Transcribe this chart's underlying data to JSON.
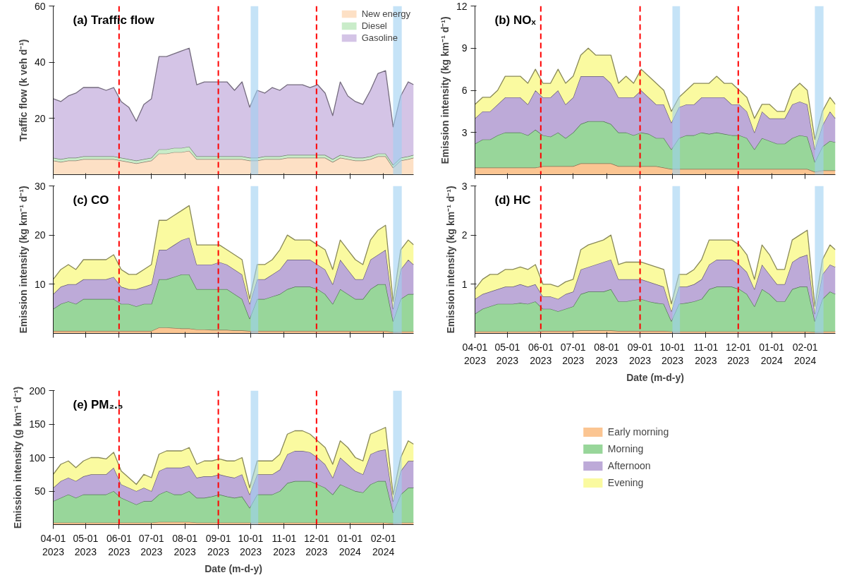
{
  "chart_data": [
    {
      "type": "area",
      "stacked": true,
      "title": "(a) Traffic flow",
      "ylabel": "Traffic flow (k veh d⁻¹)",
      "xlim": [
        "2023-04-01",
        "2024-02-29"
      ],
      "ylim": [
        0,
        60
      ],
      "yticks": [
        20,
        40,
        60
      ],
      "xticks": [
        {
          "value": "2023-04-01",
          "label": null
        },
        {
          "value": "2023-05-01",
          "label": null
        },
        {
          "value": "2023-06-01",
          "label": null
        },
        {
          "value": "2023-07-01",
          "label": null
        },
        {
          "value": "2023-08-01",
          "label": null
        },
        {
          "value": "2023-09-01",
          "label": null
        },
        {
          "value": "2023-10-01",
          "label": null
        },
        {
          "value": "2023-11-01",
          "label": null
        },
        {
          "value": "2023-12-01",
          "label": null
        },
        {
          "value": "2024-01-01",
          "label": null
        },
        {
          "value": "2024-02-01",
          "label": null
        }
      ],
      "tick_labels": "y",
      "legend": "top right",
      "grid": false,
      "x": [
        "2023-04-01",
        "2023-04-08",
        "2023-04-15",
        "2023-04-22",
        "2023-04-29",
        "2023-05-06",
        "2023-05-13",
        "2023-05-20",
        "2023-05-27",
        "2023-06-03",
        "2023-06-10",
        "2023-06-17",
        "2023-06-24",
        "2023-07-01",
        "2023-07-08",
        "2023-07-15",
        "2023-07-22",
        "2023-07-29",
        "2023-08-05",
        "2023-08-12",
        "2023-08-19",
        "2023-08-26",
        "2023-09-02",
        "2023-09-09",
        "2023-09-16",
        "2023-09-23",
        "2023-09-30",
        "2023-10-07",
        "2023-10-14",
        "2023-10-21",
        "2023-10-28",
        "2023-11-04",
        "2023-11-11",
        "2023-11-18",
        "2023-11-25",
        "2023-12-02",
        "2023-12-09",
        "2023-12-16",
        "2023-12-23",
        "2023-12-30",
        "2024-01-06",
        "2024-01-13",
        "2024-01-20",
        "2024-01-27",
        "2024-02-03",
        "2024-02-10",
        "2024-02-17",
        "2024-02-24",
        "2024-02-29"
      ],
      "series": [
        {
          "name": "New energy",
          "color": "#fde0c5",
          "values": [
            5,
            4.5,
            5,
            5,
            5.5,
            5.5,
            5.5,
            5.5,
            5.5,
            5,
            4.5,
            4,
            4.5,
            5,
            7.5,
            7.5,
            8,
            8,
            8.5,
            5.5,
            5.5,
            5.5,
            5.5,
            5.5,
            5.5,
            5.5,
            5,
            5,
            5.5,
            5.5,
            5.5,
            6,
            6,
            6,
            6,
            6,
            6,
            4.5,
            6,
            5.5,
            5,
            5,
            5.5,
            6.5,
            6.5,
            2.5,
            5,
            5.5,
            6
          ]
        },
        {
          "name": "Diesel",
          "color": "#c9ecc9",
          "values": [
            1,
            1,
            1,
            1,
            1,
            1,
            1,
            1,
            1,
            1,
            1,
            1,
            1,
            1,
            1.5,
            1.5,
            1.5,
            1.5,
            1.5,
            1,
            1,
            1,
            1,
            1,
            1,
            1,
            1,
            1,
            1,
            1,
            1,
            1,
            1,
            1,
            1,
            1,
            1,
            1,
            1,
            1,
            1,
            1,
            1,
            1,
            1,
            1,
            1,
            1,
            1
          ]
        },
        {
          "name": "Gasoline",
          "color": "#d4c4e6",
          "values": [
            21,
            20.5,
            22,
            23,
            24.5,
            24.5,
            24.5,
            23.5,
            24.5,
            20,
            18.5,
            14,
            19.5,
            21,
            33,
            33,
            33.5,
            34.5,
            35,
            25.5,
            26.5,
            26.5,
            26.5,
            26.5,
            23.5,
            26.5,
            18,
            24,
            22.5,
            24.5,
            23.5,
            25,
            25,
            25,
            24,
            25,
            22,
            15.5,
            26,
            21.5,
            20,
            19,
            23.5,
            28.5,
            29.5,
            13.5,
            22,
            26.5,
            25
          ]
        }
      ],
      "ref_lines": [
        {
          "axis": "x",
          "value": "2023-06-01",
          "color": "#ff0000",
          "line_style": "dashed"
        },
        {
          "axis": "x",
          "value": "2023-09-01",
          "color": "#ff0000",
          "line_style": "dashed"
        },
        {
          "axis": "x",
          "value": "2023-12-01",
          "color": "#ff0000",
          "line_style": "dashed"
        }
      ],
      "bands": [
        {
          "axis": "x",
          "from": "2023-10-01",
          "to": "2023-10-08",
          "color": "#9fd0f2"
        },
        {
          "axis": "x",
          "from": "2024-02-10",
          "to": "2024-02-18",
          "color": "#9fd0f2"
        }
      ]
    },
    {
      "type": "area",
      "stacked": true,
      "title": "(b) NOₓ",
      "ylabel": "Emission intensity (kg km⁻¹ d⁻¹)",
      "xlim": [
        "2023-04-01",
        "2024-02-29"
      ],
      "ylim": [
        0,
        12
      ],
      "yticks": [
        3,
        6,
        9,
        12
      ],
      "xticks": [
        {
          "value": "2023-04-01",
          "label": null
        },
        {
          "value": "2023-05-01",
          "label": null
        },
        {
          "value": "2023-06-01",
          "label": null
        },
        {
          "value": "2023-07-01",
          "label": null
        },
        {
          "value": "2023-08-01",
          "label": null
        },
        {
          "value": "2023-09-01",
          "label": null
        },
        {
          "value": "2023-10-01",
          "label": null
        },
        {
          "value": "2023-11-01",
          "label": null
        },
        {
          "value": "2023-12-01",
          "label": null
        },
        {
          "value": "2024-01-01",
          "label": null
        },
        {
          "value": "2024-02-01",
          "label": null
        }
      ],
      "tick_labels": "y",
      "grid": false,
      "x": [
        "2023-04-01",
        "2023-04-08",
        "2023-04-15",
        "2023-04-22",
        "2023-04-29",
        "2023-05-06",
        "2023-05-13",
        "2023-05-20",
        "2023-05-27",
        "2023-06-03",
        "2023-06-10",
        "2023-06-17",
        "2023-06-24",
        "2023-07-01",
        "2023-07-08",
        "2023-07-15",
        "2023-07-22",
        "2023-07-29",
        "2023-08-05",
        "2023-08-12",
        "2023-08-19",
        "2023-08-26",
        "2023-09-02",
        "2023-09-09",
        "2023-09-16",
        "2023-09-23",
        "2023-09-30",
        "2023-10-07",
        "2023-10-14",
        "2023-10-21",
        "2023-10-28",
        "2023-11-04",
        "2023-11-11",
        "2023-11-18",
        "2023-11-25",
        "2023-12-02",
        "2023-12-09",
        "2023-12-16",
        "2023-12-23",
        "2023-12-30",
        "2024-01-06",
        "2024-01-13",
        "2024-01-20",
        "2024-01-27",
        "2024-02-03",
        "2024-02-10",
        "2024-02-17",
        "2024-02-24",
        "2024-02-29"
      ],
      "series": [
        {
          "color": "#fbc592",
          "values": [
            0.5,
            0.5,
            0.5,
            0.5,
            0.5,
            0.5,
            0.5,
            0.5,
            0.5,
            0.6,
            0.6,
            0.6,
            0.6,
            0.6,
            0.8,
            0.8,
            0.8,
            0.8,
            0.8,
            0.6,
            0.6,
            0.6,
            0.6,
            0.6,
            0.6,
            0.5,
            0.4,
            0.4,
            0.4,
            0.4,
            0.4,
            0.4,
            0.4,
            0.4,
            0.4,
            0.4,
            0.4,
            0.4,
            0.4,
            0.4,
            0.4,
            0.4,
            0.4,
            0.4,
            0.4,
            0.2,
            0.3,
            0.3,
            0.3
          ]
        },
        {
          "color": "#98d69a",
          "values": [
            1.7,
            2,
            2,
            2.3,
            2.5,
            2.5,
            2.5,
            2.3,
            2.7,
            2.2,
            2.1,
            2.4,
            2,
            2.4,
            2.8,
            3,
            3,
            3,
            2.8,
            2.4,
            2.4,
            2.2,
            2.4,
            2.3,
            2,
            2.1,
            1.4,
            2.2,
            2.4,
            2.4,
            2.6,
            2.5,
            2.6,
            2.5,
            2.4,
            2.4,
            2.2,
            1.4,
            2.2,
            2,
            1.8,
            1.8,
            2.2,
            2.4,
            2.3,
            0.7,
            1.7,
            2.1,
            2
          ]
        },
        {
          "color": "#bdaad8",
          "values": [
            1.8,
            2,
            2,
            2.2,
            2.5,
            2.5,
            2.5,
            2.2,
            2.8,
            2.7,
            2.8,
            3,
            2.4,
            2.5,
            3.4,
            3.2,
            3.2,
            3.2,
            2.9,
            2.5,
            2.5,
            2.7,
            3,
            2.6,
            2.4,
            2.4,
            1.9,
            2.2,
            2.2,
            2.2,
            2.5,
            2.6,
            2.5,
            2.6,
            2.2,
            2.2,
            1.9,
            1.2,
            1.9,
            1.6,
            1.8,
            1.8,
            2.4,
            2.4,
            2.3,
            0.9,
            1.5,
            2.1,
            1.7
          ]
        },
        {
          "color": "#fafaa0",
          "values": [
            1,
            1,
            1,
            1,
            1.5,
            1.5,
            1.5,
            1.5,
            1.5,
            1,
            1,
            1.5,
            1.5,
            1.5,
            1.5,
            2,
            1.5,
            1.5,
            2,
            1,
            1.5,
            1,
            1.5,
            1.5,
            1.5,
            1,
            0.8,
            0.7,
            1,
            1.5,
            1,
            1,
            1.5,
            1,
            1.5,
            1,
            1,
            1,
            0.5,
            1,
            0.5,
            0.5,
            1,
            1.3,
            1,
            0.7,
            1,
            1,
            1
          ]
        }
      ],
      "ref_lines": [
        {
          "axis": "x",
          "value": "2023-06-01",
          "color": "#ff0000",
          "line_style": "dashed"
        },
        {
          "axis": "x",
          "value": "2023-09-01",
          "color": "#ff0000",
          "line_style": "dashed"
        },
        {
          "axis": "x",
          "value": "2023-12-01",
          "color": "#ff0000",
          "line_style": "dashed"
        }
      ],
      "bands": [
        {
          "axis": "x",
          "from": "2023-10-01",
          "to": "2023-10-08",
          "color": "#9fd0f2"
        },
        {
          "axis": "x",
          "from": "2024-02-10",
          "to": "2024-02-18",
          "color": "#9fd0f2"
        }
      ]
    },
    {
      "type": "area",
      "stacked": true,
      "title": "(c) CO",
      "ylabel": "Emission intensity (kg km⁻¹ d⁻¹)",
      "xlim": [
        "2023-04-01",
        "2024-02-29"
      ],
      "ylim": [
        0,
        30
      ],
      "yticks": [
        10,
        20,
        30
      ],
      "xticks": [
        {
          "value": "2023-04-01",
          "label": null
        },
        {
          "value": "2023-05-01",
          "label": null
        },
        {
          "value": "2023-06-01",
          "label": null
        },
        {
          "value": "2023-07-01",
          "label": null
        },
        {
          "value": "2023-08-01",
          "label": null
        },
        {
          "value": "2023-09-01",
          "label": null
        },
        {
          "value": "2023-10-01",
          "label": null
        },
        {
          "value": "2023-11-01",
          "label": null
        },
        {
          "value": "2023-12-01",
          "label": null
        },
        {
          "value": "2024-01-01",
          "label": null
        },
        {
          "value": "2024-02-01",
          "label": null
        }
      ],
      "tick_labels": "y",
      "grid": false,
      "x": [
        "2023-04-01",
        "2023-04-08",
        "2023-04-15",
        "2023-04-22",
        "2023-04-29",
        "2023-05-06",
        "2023-05-13",
        "2023-05-20",
        "2023-05-27",
        "2023-06-03",
        "2023-06-10",
        "2023-06-17",
        "2023-06-24",
        "2023-07-01",
        "2023-07-08",
        "2023-07-15",
        "2023-07-22",
        "2023-07-29",
        "2023-08-05",
        "2023-08-12",
        "2023-08-19",
        "2023-08-26",
        "2023-09-02",
        "2023-09-09",
        "2023-09-16",
        "2023-09-23",
        "2023-09-30",
        "2023-10-07",
        "2023-10-14",
        "2023-10-21",
        "2023-10-28",
        "2023-11-04",
        "2023-11-11",
        "2023-11-18",
        "2023-11-25",
        "2023-12-02",
        "2023-12-09",
        "2023-12-16",
        "2023-12-23",
        "2023-12-30",
        "2024-01-06",
        "2024-01-13",
        "2024-01-20",
        "2024-01-27",
        "2024-02-03",
        "2024-02-10",
        "2024-02-17",
        "2024-02-24",
        "2024-02-29"
      ],
      "series": [
        {
          "color": "#fbc592",
          "values": [
            0.5,
            0.5,
            0.5,
            0.5,
            0.5,
            0.5,
            0.5,
            0.5,
            0.5,
            0.5,
            0.5,
            0.5,
            0.5,
            0.5,
            1.2,
            1.2,
            1.1,
            1,
            1,
            0.8,
            0.8,
            0.7,
            0.7,
            0.7,
            0.6,
            0.6,
            0.5,
            0.5,
            0.5,
            0.5,
            0.5,
            0.5,
            0.5,
            0.5,
            0.5,
            0.5,
            0.5,
            0.5,
            0.5,
            0.5,
            0.5,
            0.5,
            0.5,
            0.5,
            0.5,
            0.3,
            0.4,
            0.4,
            0.4
          ]
        },
        {
          "color": "#98d69a",
          "values": [
            4.5,
            5.5,
            6,
            5.5,
            6.5,
            6.5,
            6.5,
            6.5,
            6.5,
            5.5,
            5.5,
            5,
            5.5,
            5.5,
            9.8,
            9.8,
            10.4,
            11,
            11,
            8.2,
            8.2,
            8.3,
            8.3,
            8.3,
            7.4,
            6.4,
            2.5,
            6.5,
            6.5,
            7,
            7.5,
            8.5,
            9,
            9,
            9,
            8.5,
            7.5,
            5.5,
            8.5,
            7.5,
            6.5,
            6.5,
            8.5,
            9.5,
            9.5,
            2.2,
            6.6,
            7.6,
            7.6
          ]
        },
        {
          "color": "#bdaad8",
          "values": [
            3,
            3.5,
            3.5,
            4,
            4,
            4,
            4,
            4,
            4.5,
            3.5,
            3,
            3.5,
            3.5,
            4,
            6,
            6,
            6.5,
            7,
            7.5,
            5,
            5,
            5,
            5.5,
            5,
            5,
            5,
            3,
            4,
            4,
            4.5,
            5,
            6,
            5.5,
            5.5,
            5.5,
            5,
            5,
            4,
            6,
            5,
            4,
            4,
            6,
            6,
            7,
            2.5,
            6,
            7,
            6
          ]
        },
        {
          "color": "#fafaa0",
          "values": [
            3,
            3.5,
            4,
            3,
            4,
            4,
            4,
            4,
            4.5,
            3.5,
            3,
            3,
            3.5,
            4,
            6,
            6,
            6,
            6,
            6.5,
            4,
            4,
            4,
            3.5,
            3,
            3,
            3,
            1,
            3,
            3,
            3,
            4,
            5,
            4,
            4,
            4,
            4,
            4,
            3,
            4,
            4,
            4,
            3,
            4,
            5,
            5,
            1.5,
            4,
            4,
            4
          ]
        }
      ],
      "ref_lines": [
        {
          "axis": "x",
          "value": "2023-06-01",
          "color": "#ff0000",
          "line_style": "dashed"
        },
        {
          "axis": "x",
          "value": "2023-09-01",
          "color": "#ff0000",
          "line_style": "dashed"
        },
        {
          "axis": "x",
          "value": "2023-12-01",
          "color": "#ff0000",
          "line_style": "dashed"
        }
      ],
      "bands": [
        {
          "axis": "x",
          "from": "2023-10-01",
          "to": "2023-10-08",
          "color": "#9fd0f2"
        },
        {
          "axis": "x",
          "from": "2024-02-10",
          "to": "2024-02-18",
          "color": "#9fd0f2"
        }
      ]
    },
    {
      "type": "area",
      "stacked": true,
      "title": "(d) HC",
      "ylabel": "Emission intensity (kg km⁻¹ d⁻¹)",
      "xlabel": "Date (m-d-y)",
      "xlim": [
        "2023-04-01",
        "2024-02-29"
      ],
      "ylim": [
        0,
        3
      ],
      "yticks": [
        1,
        2,
        3
      ],
      "xticks": [
        {
          "value": "2023-04-01",
          "label": "04-01\n2023"
        },
        {
          "value": "2023-05-01",
          "label": "05-01\n2023"
        },
        {
          "value": "2023-06-01",
          "label": "06-01\n2023"
        },
        {
          "value": "2023-07-01",
          "label": "07-01\n2023"
        },
        {
          "value": "2023-08-01",
          "label": "08-01\n2023"
        },
        {
          "value": "2023-09-01",
          "label": "09-01\n2023"
        },
        {
          "value": "2023-10-01",
          "label": "10-01\n2023"
        },
        {
          "value": "2023-11-01",
          "label": "11-01\n2023"
        },
        {
          "value": "2023-12-01",
          "label": "12-01\n2023"
        },
        {
          "value": "2024-01-01",
          "label": "01-01\n2024"
        },
        {
          "value": "2024-02-01",
          "label": "02-01\n2024"
        }
      ],
      "grid": false,
      "x": [
        "2023-04-01",
        "2023-04-08",
        "2023-04-15",
        "2023-04-22",
        "2023-04-29",
        "2023-05-06",
        "2023-05-13",
        "2023-05-20",
        "2023-05-27",
        "2023-06-03",
        "2023-06-10",
        "2023-06-17",
        "2023-06-24",
        "2023-07-01",
        "2023-07-08",
        "2023-07-15",
        "2023-07-22",
        "2023-07-29",
        "2023-08-05",
        "2023-08-12",
        "2023-08-19",
        "2023-08-26",
        "2023-09-02",
        "2023-09-09",
        "2023-09-16",
        "2023-09-23",
        "2023-09-30",
        "2023-10-07",
        "2023-10-14",
        "2023-10-21",
        "2023-10-28",
        "2023-11-04",
        "2023-11-11",
        "2023-11-18",
        "2023-11-25",
        "2023-12-02",
        "2023-12-09",
        "2023-12-16",
        "2023-12-23",
        "2023-12-30",
        "2024-01-06",
        "2024-01-13",
        "2024-01-20",
        "2024-01-27",
        "2024-02-03",
        "2024-02-10",
        "2024-02-17",
        "2024-02-24",
        "2024-02-29"
      ],
      "series": [
        {
          "color": "#fbc592",
          "values": [
            0.04,
            0.04,
            0.04,
            0.04,
            0.04,
            0.04,
            0.04,
            0.04,
            0.04,
            0.05,
            0.05,
            0.05,
            0.05,
            0.05,
            0.06,
            0.06,
            0.06,
            0.06,
            0.06,
            0.05,
            0.05,
            0.05,
            0.05,
            0.05,
            0.05,
            0.05,
            0.04,
            0.04,
            0.04,
            0.04,
            0.04,
            0.04,
            0.04,
            0.04,
            0.04,
            0.04,
            0.04,
            0.04,
            0.04,
            0.04,
            0.04,
            0.04,
            0.04,
            0.04,
            0.04,
            0.03,
            0.04,
            0.04,
            0.04
          ]
        },
        {
          "color": "#98d69a",
          "values": [
            0.36,
            0.46,
            0.51,
            0.56,
            0.56,
            0.56,
            0.58,
            0.56,
            0.61,
            0.45,
            0.45,
            0.4,
            0.45,
            0.5,
            0.74,
            0.79,
            0.79,
            0.79,
            0.84,
            0.6,
            0.6,
            0.63,
            0.65,
            0.6,
            0.57,
            0.55,
            0.21,
            0.56,
            0.58,
            0.61,
            0.66,
            0.86,
            0.91,
            0.91,
            0.91,
            0.86,
            0.76,
            0.51,
            0.86,
            0.76,
            0.61,
            0.61,
            0.86,
            0.91,
            0.91,
            0.22,
            0.66,
            0.81,
            0.76
          ]
        },
        {
          "color": "#bdaad8",
          "values": [
            0.3,
            0.3,
            0.3,
            0.3,
            0.35,
            0.35,
            0.38,
            0.35,
            0.35,
            0.25,
            0.25,
            0.25,
            0.3,
            0.3,
            0.5,
            0.5,
            0.55,
            0.6,
            0.6,
            0.45,
            0.45,
            0.42,
            0.4,
            0.4,
            0.38,
            0.35,
            0.2,
            0.35,
            0.33,
            0.35,
            0.4,
            0.5,
            0.55,
            0.55,
            0.55,
            0.5,
            0.45,
            0.35,
            0.5,
            0.4,
            0.35,
            0.35,
            0.55,
            0.6,
            0.65,
            0.15,
            0.5,
            0.55,
            0.55
          ]
        },
        {
          "color": "#fafaa0",
          "values": [
            0.2,
            0.3,
            0.35,
            0.3,
            0.35,
            0.35,
            0.35,
            0.35,
            0.4,
            0.25,
            0.25,
            0.25,
            0.25,
            0.25,
            0.4,
            0.45,
            0.45,
            0.45,
            0.5,
            0.3,
            0.35,
            0.35,
            0.35,
            0.35,
            0.35,
            0.35,
            0.15,
            0.25,
            0.25,
            0.3,
            0.4,
            0.5,
            0.4,
            0.4,
            0.4,
            0.4,
            0.35,
            0.2,
            0.4,
            0.4,
            0.3,
            0.3,
            0.45,
            0.45,
            0.5,
            0.15,
            0.3,
            0.4,
            0.35
          ]
        }
      ],
      "ref_lines": [
        {
          "axis": "x",
          "value": "2023-06-01",
          "color": "#ff0000",
          "line_style": "dashed"
        },
        {
          "axis": "x",
          "value": "2023-09-01",
          "color": "#ff0000",
          "line_style": "dashed"
        },
        {
          "axis": "x",
          "value": "2023-12-01",
          "color": "#ff0000",
          "line_style": "dashed"
        }
      ],
      "bands": [
        {
          "axis": "x",
          "from": "2023-10-01",
          "to": "2023-10-08",
          "color": "#9fd0f2"
        },
        {
          "axis": "x",
          "from": "2024-02-10",
          "to": "2024-02-18",
          "color": "#9fd0f2"
        }
      ]
    },
    {
      "type": "area",
      "stacked": true,
      "title": "(e) PM₂.₅",
      "legend": "right",
      "ylabel": "Emission intensity (g km⁻¹ d⁻¹)",
      "xlabel": "Date (m-d-y)",
      "xlim": [
        "2023-04-01",
        "2024-02-29"
      ],
      "ylim": [
        0,
        200
      ],
      "yticks": [
        50,
        100,
        150,
        200
      ],
      "xticks": [
        {
          "value": "2023-04-01",
          "label": "04-01\n2023"
        },
        {
          "value": "2023-05-01",
          "label": "05-01\n2023"
        },
        {
          "value": "2023-06-01",
          "label": "06-01\n2023"
        },
        {
          "value": "2023-07-01",
          "label": "07-01\n2023"
        },
        {
          "value": "2023-08-01",
          "label": "08-01\n2023"
        },
        {
          "value": "2023-09-01",
          "label": "09-01\n2023"
        },
        {
          "value": "2023-10-01",
          "label": "10-01\n2023"
        },
        {
          "value": "2023-11-01",
          "label": "11-01\n2023"
        },
        {
          "value": "2023-12-01",
          "label": "12-01\n2023"
        },
        {
          "value": "2024-01-01",
          "label": "01-01\n2024"
        },
        {
          "value": "2024-02-01",
          "label": "02-01\n2024"
        }
      ],
      "grid": false,
      "x": [
        "2023-04-01",
        "2023-04-08",
        "2023-04-15",
        "2023-04-22",
        "2023-04-29",
        "2023-05-06",
        "2023-05-13",
        "2023-05-20",
        "2023-05-27",
        "2023-06-03",
        "2023-06-10",
        "2023-06-17",
        "2023-06-24",
        "2023-07-01",
        "2023-07-08",
        "2023-07-15",
        "2023-07-22",
        "2023-07-29",
        "2023-08-05",
        "2023-08-12",
        "2023-08-19",
        "2023-08-26",
        "2023-09-02",
        "2023-09-09",
        "2023-09-16",
        "2023-09-23",
        "2023-09-30",
        "2023-10-07",
        "2023-10-14",
        "2023-10-21",
        "2023-10-28",
        "2023-11-04",
        "2023-11-11",
        "2023-11-18",
        "2023-11-25",
        "2023-12-02",
        "2023-12-09",
        "2023-12-16",
        "2023-12-23",
        "2023-12-30",
        "2024-01-06",
        "2024-01-13",
        "2024-01-20",
        "2024-01-27",
        "2024-02-03",
        "2024-02-10",
        "2024-02-17",
        "2024-02-24",
        "2024-02-29"
      ],
      "series": [
        {
          "name": "Early morning",
          "color": "#fbc592",
          "values": [
            3,
            3,
            3,
            3,
            3,
            3,
            3,
            3,
            3,
            3,
            3,
            3,
            3,
            3,
            4,
            4,
            4,
            4,
            4,
            3,
            3,
            3,
            3,
            3,
            3,
            3,
            3,
            3,
            3,
            3,
            3,
            3,
            3,
            3,
            3,
            3,
            3,
            3,
            3,
            3,
            3,
            3,
            3,
            3,
            3,
            2,
            3,
            3,
            3
          ]
        },
        {
          "name": "Morning",
          "color": "#98d69a",
          "values": [
            32,
            37,
            42,
            37,
            42,
            42,
            42,
            42,
            47,
            37,
            32,
            27,
            32,
            32,
            41,
            46,
            41,
            41,
            46,
            37,
            37,
            39,
            42,
            39,
            37,
            39,
            22,
            42,
            42,
            42,
            47,
            59,
            62,
            62,
            62,
            57,
            52,
            42,
            57,
            52,
            47,
            45,
            57,
            62,
            62,
            16,
            42,
            52,
            52
          ]
        },
        {
          "name": "Afternoon",
          "color": "#bdaad8",
          "values": [
            20,
            25,
            25,
            25,
            27,
            30,
            30,
            30,
            35,
            20,
            20,
            20,
            20,
            15,
            35,
            35,
            40,
            40,
            38,
            30,
            32,
            30,
            30,
            30,
            30,
            33,
            20,
            30,
            30,
            30,
            32,
            43,
            45,
            45,
            43,
            40,
            35,
            25,
            40,
            35,
            30,
            27,
            45,
            45,
            47,
            17,
            35,
            40,
            40
          ]
        },
        {
          "name": "Evening",
          "color": "#fafaa0",
          "values": [
            20,
            25,
            25,
            20,
            23,
            25,
            25,
            23,
            23,
            20,
            15,
            10,
            20,
            20,
            25,
            25,
            25,
            25,
            27,
            20,
            23,
            23,
            23,
            23,
            25,
            25,
            10,
            20,
            20,
            20,
            23,
            30,
            30,
            30,
            27,
            25,
            25,
            20,
            25,
            25,
            20,
            20,
            30,
            30,
            33,
            10,
            20,
            30,
            25
          ]
        }
      ],
      "ref_lines": [
        {
          "axis": "x",
          "value": "2023-06-01",
          "color": "#ff0000",
          "line_style": "dashed"
        },
        {
          "axis": "x",
          "value": "2023-09-01",
          "color": "#ff0000",
          "line_style": "dashed"
        },
        {
          "axis": "x",
          "value": "2023-12-01",
          "color": "#ff0000",
          "line_style": "dashed"
        }
      ],
      "bands": [
        {
          "axis": "x",
          "from": "2023-10-01",
          "to": "2023-10-08",
          "color": "#9fd0f2"
        },
        {
          "axis": "x",
          "from": "2024-02-10",
          "to": "2024-02-18",
          "color": "#9fd0f2"
        }
      ]
    }
  ]
}
